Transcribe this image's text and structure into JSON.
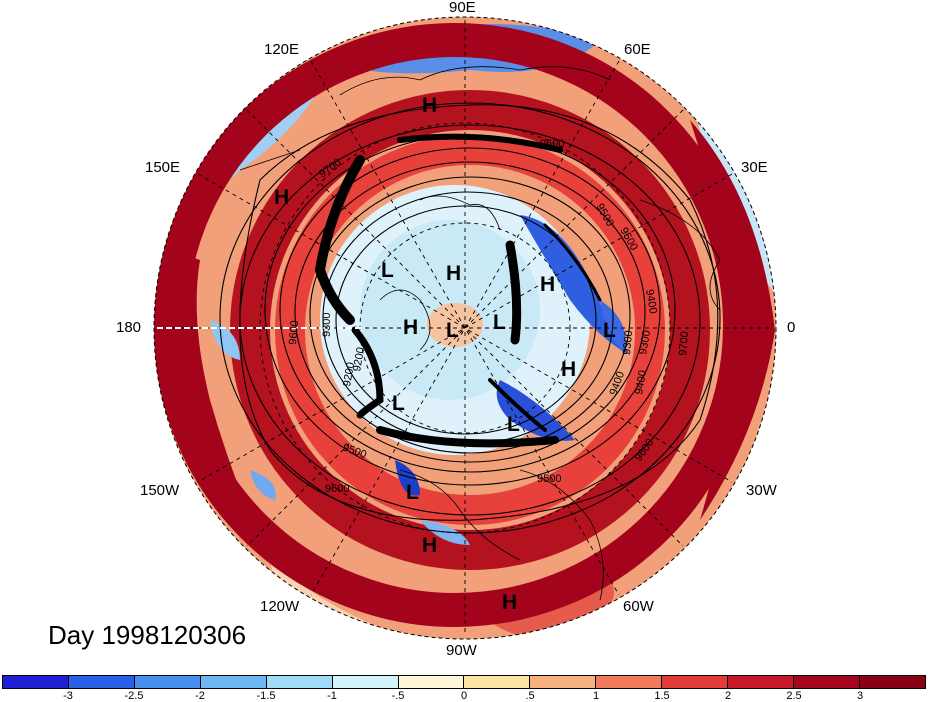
{
  "title": "Day 1998120306",
  "longitude_labels": [
    "90E",
    "120E",
    "60E",
    "150E",
    "30E",
    "180",
    "0",
    "150W",
    "30W",
    "120W",
    "60W",
    "90W"
  ],
  "pressure_centers": [
    "H",
    "H",
    "L",
    "H",
    "H",
    "L",
    "L",
    "L",
    "H",
    "L",
    "H",
    "L",
    "L",
    "H",
    "H"
  ],
  "contour_labels": [
    "9700",
    "9600",
    "9500",
    "9400",
    "9300",
    "9200",
    "9300",
    "9400",
    "9500",
    "9600",
    "9500",
    "9600",
    "9700",
    "9600",
    "9500",
    "9400",
    "9300",
    "9200"
  ],
  "colorbar": {
    "ticks": [
      "-3",
      "-2.5",
      "-2",
      "-1.5",
      "-1",
      "-.5",
      "0",
      ".5",
      "1",
      "1.5",
      "2",
      "2.5",
      "3"
    ],
    "colors": [
      "#1f1fd6",
      "#2a5fe8",
      "#4890ee",
      "#6fb6f5",
      "#9fdcf7",
      "#d3f4fb",
      "#fff6d8",
      "#fde3a4",
      "#f7b07e",
      "#f27a5c",
      "#e53a3a",
      "#c8182c",
      "#a5051e",
      "#8a0014"
    ]
  },
  "colors": {
    "field_dark_red": "#a3041c",
    "field_red": "#e8413c",
    "field_blue": "#2f5fe0"
  }
}
